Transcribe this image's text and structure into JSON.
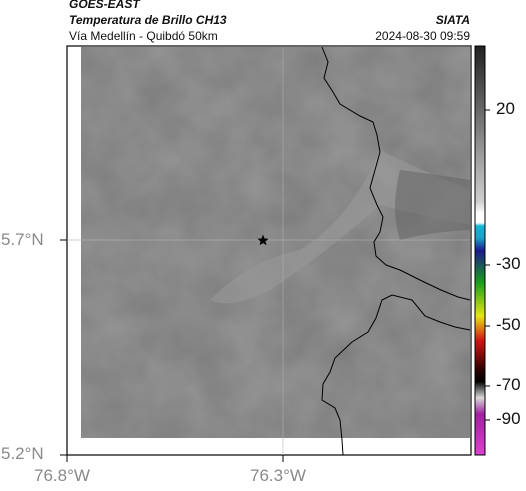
{
  "header": {
    "satellite": "GOES-EAST",
    "product": "Temperatura de Brillo CH13",
    "region": "Vía Medellín - Quibdó 50km",
    "agency": "SIATA",
    "datetime": "2024-08-30 09:59"
  },
  "map": {
    "lat_ticks": [
      "5.7°N",
      "5.2°N"
    ],
    "lon_ticks": [
      "76.8°W",
      "76.3°W"
    ],
    "marker": "star-marker"
  },
  "colorbar": {
    "ticks": [
      "20",
      "-30",
      "-50",
      "-70",
      "-90"
    ],
    "colors": {
      "warm_gray": "#d8d8d8",
      "cyan": "#14b4d4",
      "navy": "#1a1a8c",
      "green": "#1aa01a",
      "yellow": "#e6e614",
      "red": "#d41414",
      "black": "#000000",
      "purple": "#a020a0"
    }
  }
}
